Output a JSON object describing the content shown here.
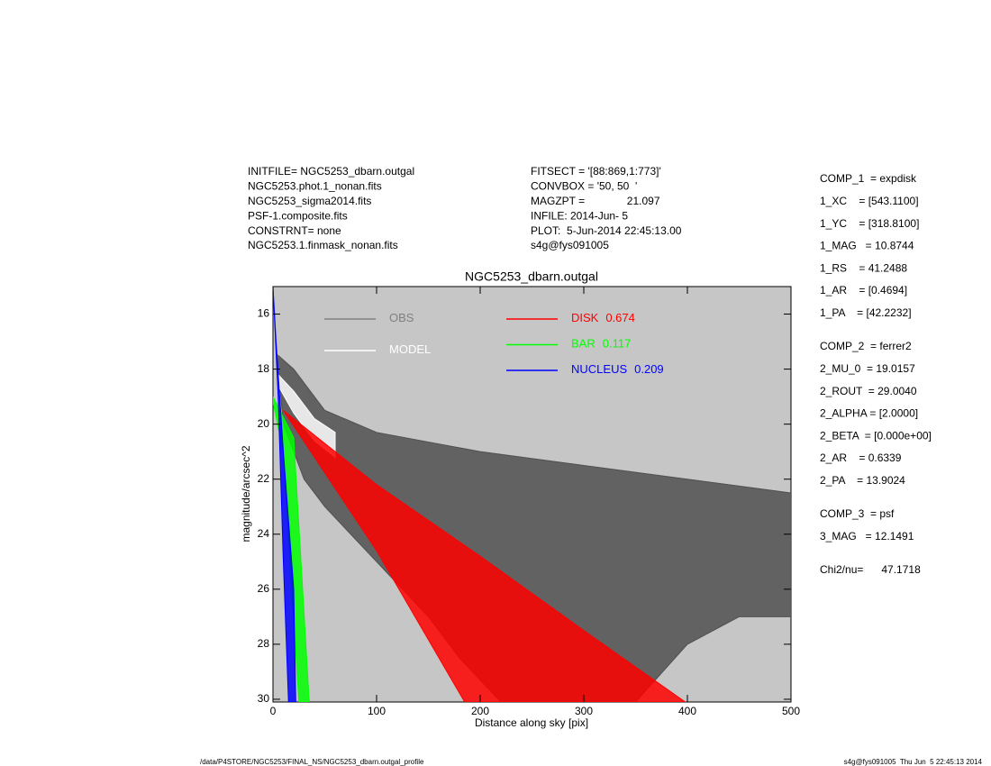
{
  "header_left": [
    "INITFILE= NGC5253_dbarn.outgal",
    "NGC5253.phot.1_nonan.fits",
    "NGC5253_sigma2014.fits",
    "PSF-1.composite.fits",
    "CONSTRNT= none",
    "NGC5253.1.finmask_nonan.fits"
  ],
  "header_middle": [
    "FITSECT = '[88:869,1:773]'",
    "CONVBOX = '50, 50  '",
    "MAGZPT =              21.097",
    "INFILE: 2014-Jun- 5",
    "PLOT:  5-Jun-2014 22:45:13.00",
    "s4g@fys091005"
  ],
  "parameters": [
    [
      "COMP_1  = expdisk",
      "1_XC    = [543.1100]",
      "1_YC    = [318.8100]",
      "1_MAG   = 10.8744",
      "1_RS    = 41.2488",
      "1_AR    = [0.4694]",
      "1_PA    = [42.2232]"
    ],
    [
      "COMP_2  = ferrer2",
      "2_MU_0  = 19.0157",
      "2_ROUT  = 29.0040",
      "2_ALPHA = [2.0000]",
      "2_BETA  = [0.000e+00]",
      "2_AR    = 0.6339",
      "2_PA    = 13.9024"
    ],
    [
      "COMP_3  = psf",
      "3_MAG   = 12.1491"
    ],
    [
      "Chi2/nu=      47.1718"
    ]
  ],
  "footer_left": "/data/P4STORE/NGC5253/FINAL_NS/NGC5253_dbarn.outgal_profile",
  "footer_right": "s4g@fys091005  Thu Jun  5 22:45:13 2014",
  "chart_data": {
    "type": "band",
    "title": "NGC5253_dbarn.outgal",
    "xlabel": "Distance along sky [pix]",
    "ylabel": "magnitude/arcsec^2",
    "xlim": [
      0,
      500
    ],
    "ylim": [
      15,
      30.1
    ],
    "y_inverted": true,
    "xticks": [
      0,
      100,
      200,
      300,
      400,
      500
    ],
    "yticks": [
      16,
      18,
      20,
      22,
      24,
      26,
      28,
      30
    ],
    "background": "#c6c6c6",
    "series": [
      {
        "name": "OBS",
        "color": "#505050",
        "legend_color": "#808080",
        "edges": [
          {
            "x": [
              5,
              20,
              50,
              100,
              200,
              300,
              400,
              500
            ],
            "y": [
              17.5,
              18,
              19.5,
              20.3,
              21,
              21.5,
              22,
              22.5
            ]
          },
          {
            "x": [
              5,
              10,
              30,
              50,
              100,
              150,
              180,
              220,
              350,
              400,
              450,
              500
            ],
            "y": [
              18,
              20,
              22,
              23,
              25,
              27,
              28.5,
              30.1,
              30.1,
              28,
              27,
              27
            ]
          }
        ]
      },
      {
        "name": "MODEL",
        "color": "#ffffff",
        "legend_color": "#ffffff",
        "edges": [
          {
            "x": [
              5,
              20,
              40,
              60
            ],
            "y": [
              18.2,
              18.8,
              19.8,
              20.3
            ]
          },
          {
            "x": [
              5,
              20,
              40,
              60
            ],
            "y": [
              18.6,
              19.6,
              20.6,
              21.2
            ]
          }
        ]
      },
      {
        "name": "DISK",
        "fraction": 0.674,
        "color": "#ff0000",
        "legend_color": "#ff0000",
        "edges": [
          {
            "x": [
              10,
              100,
              200,
              300,
              398
            ],
            "y": [
              19.5,
              22.2,
              24.8,
              27.5,
              30.1
            ]
          },
          {
            "x": [
              10,
              100,
              185
            ],
            "y": [
              19.5,
              24.6,
              30.1
            ]
          }
        ]
      },
      {
        "name": "BAR",
        "fraction": 0.117,
        "color": "#00ff00",
        "legend_color": "#00ff00",
        "edges": [
          {
            "x": [
              0,
              20,
              35
            ],
            "y": [
              19,
              20.5,
              30.1
            ]
          },
          {
            "x": [
              0,
              10,
              25
            ],
            "y": [
              19.2,
              21,
              30.1
            ]
          }
        ]
      },
      {
        "name": "NUCLEUS",
        "fraction": 0.209,
        "color": "#0000ff",
        "legend_color": "#0000ff",
        "edges": [
          {
            "x": [
              0,
              3,
              10,
              20,
              22
            ],
            "y": [
              15,
              17,
              21,
              26,
              30.1
            ]
          },
          {
            "x": [
              0,
              5,
              10,
              15
            ],
            "y": [
              15,
              19,
              25,
              30.1
            ]
          }
        ]
      }
    ]
  }
}
